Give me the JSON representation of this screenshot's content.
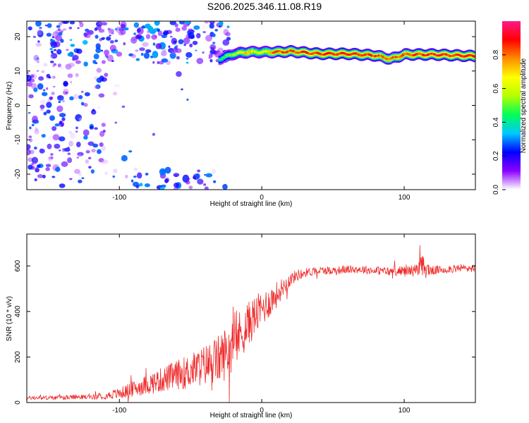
{
  "title": "S206.2025.346.11.08.R19",
  "colors": {
    "line": "#ef2b2b",
    "colormap": [
      "#ffffff",
      "#8b00ff",
      "#0000ff",
      "#00c8ff",
      "#00ff5a",
      "#b4ff00",
      "#ffff00",
      "#ff8c00",
      "#ff0000",
      "#ff1a8c"
    ]
  },
  "chart_data": [
    {
      "type": "heatmap",
      "xlabel": "Height of straight line (km)",
      "ylabel": "Frequency (Hz)",
      "xlim": [
        -165,
        150
      ],
      "ylim": [
        -24.5,
        24.5
      ],
      "xticks": [
        -100,
        0,
        100
      ],
      "yticks": [
        -20,
        -10,
        0,
        10,
        20
      ],
      "colorbar": {
        "label": "Normalized spectral amplitude",
        "range": [
          0,
          1
        ],
        "ticks": [
          "0.0",
          "0.2",
          "0.4",
          "0.6",
          "0.8"
        ]
      },
      "ridge": {
        "description_points_x": [
          -30,
          -20,
          -10,
          0,
          10,
          20,
          40,
          60,
          80,
          90,
          100,
          120,
          150
        ],
        "frequency_hz": [
          13.5,
          15.0,
          15.5,
          15.5,
          15.5,
          15.7,
          15.0,
          15.0,
          14.5,
          13.5,
          14.8,
          14.8,
          14.3
        ],
        "amplitude": [
          0.45,
          0.6,
          0.8,
          0.7,
          0.9,
          0.9,
          0.95,
          0.95,
          0.9,
          0.85,
          0.9,
          0.95,
          0.95
        ]
      },
      "noise_region": {
        "x_range": [
          -165,
          -30
        ],
        "max_amplitude": 0.3
      }
    },
    {
      "type": "line",
      "xlabel": "Height of straight line (km)",
      "ylabel": "SNR (10 * v/v)",
      "xlim": [
        -165,
        150
      ],
      "ylim": [
        0,
        740
      ],
      "xticks": [
        -100,
        0,
        100
      ],
      "yticks": [
        0,
        200,
        400,
        600
      ],
      "series": [
        {
          "x": [
            -165,
            -140,
            -120,
            -110,
            -100,
            -90,
            -80,
            -70,
            -60,
            -50,
            -40,
            -30,
            -25,
            -20,
            -15,
            -10,
            -5,
            0,
            5,
            10,
            15,
            20,
            25,
            30,
            40,
            50,
            60,
            70,
            80,
            90,
            100,
            110,
            112,
            115,
            120,
            130,
            140,
            150
          ],
          "y": [
            20,
            22,
            25,
            30,
            40,
            60,
            80,
            100,
            120,
            140,
            165,
            190,
            220,
            260,
            300,
            340,
            380,
            410,
            440,
            470,
            510,
            540,
            560,
            570,
            580,
            580,
            585,
            585,
            580,
            575,
            580,
            580,
            600,
            585,
            580,
            585,
            590,
            590
          ],
          "noise_amplitude": [
            8,
            10,
            10,
            15,
            25,
            35,
            45,
            55,
            65,
            75,
            90,
            110,
            120,
            120,
            110,
            100,
            90,
            80,
            70,
            60,
            40,
            30,
            25,
            20,
            18,
            18,
            18,
            18,
            18,
            20,
            20,
            30,
            60,
            40,
            20,
            18,
            18,
            18
          ]
        }
      ]
    }
  ]
}
